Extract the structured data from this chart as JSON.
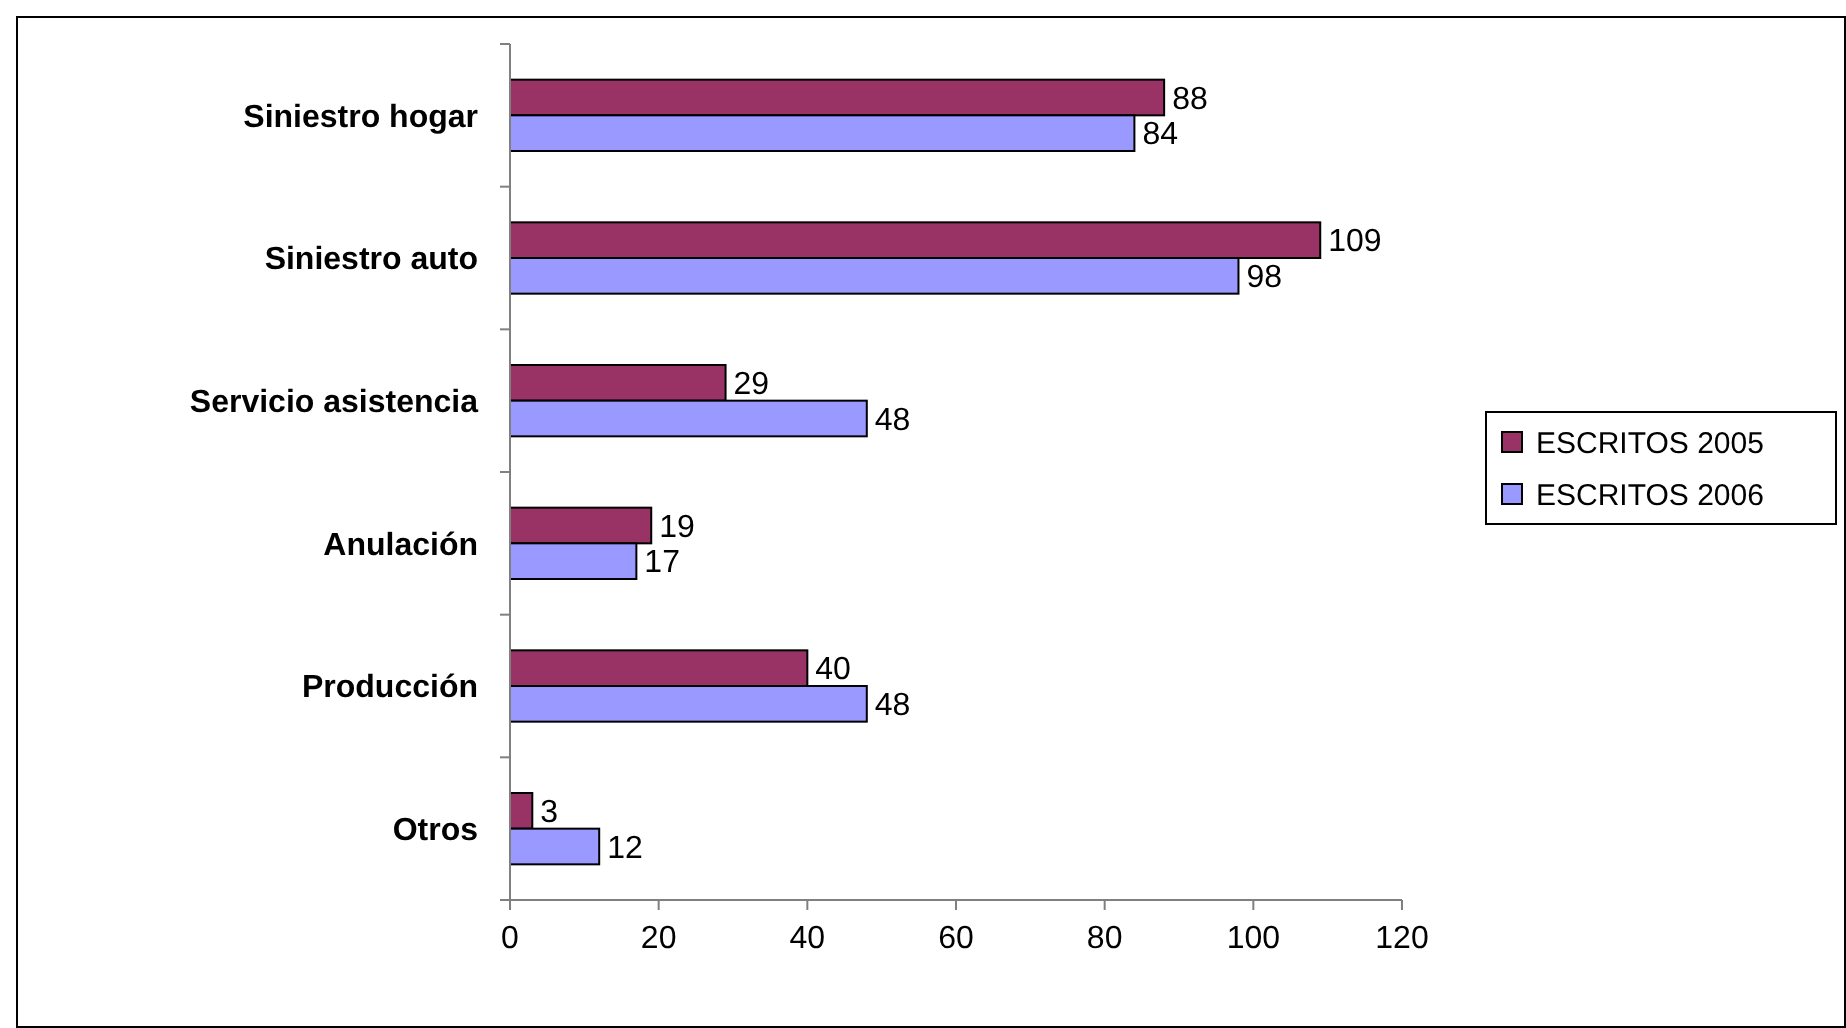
{
  "chart_data": {
    "type": "bar",
    "orientation": "horizontal",
    "categories": [
      "Siniestro hogar",
      "Siniestro auto",
      "Servicio asistencia",
      "Anulación",
      "Producción",
      "Otros"
    ],
    "series": [
      {
        "name": "ESCRITOS 2005",
        "color": "#993366",
        "values": [
          88,
          109,
          29,
          19,
          40,
          3
        ]
      },
      {
        "name": "ESCRITOS 2006",
        "color": "#9999ff",
        "values": [
          84,
          98,
          48,
          17,
          48,
          12
        ]
      }
    ],
    "xlim": [
      0,
      120
    ],
    "xticks": [
      0,
      20,
      40,
      60,
      80,
      100,
      120
    ],
    "data_labels": true,
    "legend": "right",
    "grid": false
  }
}
